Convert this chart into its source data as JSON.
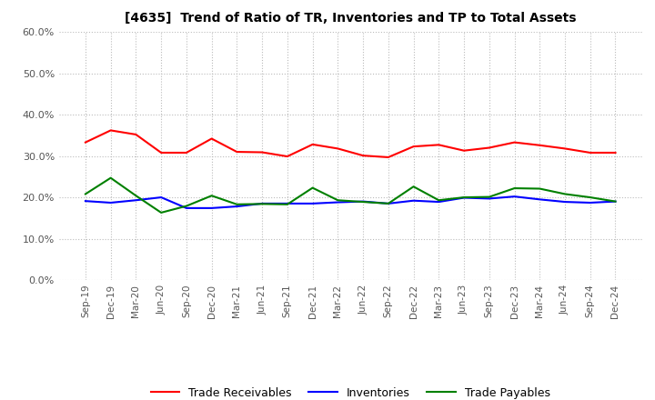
{
  "title": "[4635]  Trend of Ratio of TR, Inventories and TP to Total Assets",
  "x_labels": [
    "Sep-19",
    "Dec-19",
    "Mar-20",
    "Jun-20",
    "Sep-20",
    "Dec-20",
    "Mar-21",
    "Jun-21",
    "Sep-21",
    "Dec-21",
    "Mar-22",
    "Jun-22",
    "Sep-22",
    "Dec-22",
    "Mar-23",
    "Jun-23",
    "Sep-23",
    "Dec-23",
    "Mar-24",
    "Jun-24",
    "Sep-24",
    "Dec-24"
  ],
  "trade_receivables": [
    0.333,
    0.362,
    0.352,
    0.308,
    0.308,
    0.342,
    0.31,
    0.309,
    0.299,
    0.328,
    0.318,
    0.301,
    0.297,
    0.323,
    0.327,
    0.313,
    0.32,
    0.333,
    0.326,
    0.318,
    0.308,
    0.308
  ],
  "inventories": [
    0.191,
    0.187,
    0.193,
    0.2,
    0.174,
    0.174,
    0.178,
    0.185,
    0.185,
    0.185,
    0.188,
    0.19,
    0.185,
    0.192,
    0.189,
    0.199,
    0.197,
    0.202,
    0.195,
    0.189,
    0.187,
    0.19
  ],
  "trade_payables": [
    0.208,
    0.247,
    0.204,
    0.163,
    0.179,
    0.204,
    0.183,
    0.184,
    0.183,
    0.223,
    0.193,
    0.189,
    0.185,
    0.226,
    0.193,
    0.2,
    0.201,
    0.222,
    0.221,
    0.208,
    0.2,
    0.19
  ],
  "ylim": [
    0.0,
    0.6
  ],
  "yticks": [
    0.0,
    0.1,
    0.2,
    0.3,
    0.4,
    0.5,
    0.6
  ],
  "line_colors": {
    "trade_receivables": "#FF0000",
    "inventories": "#0000FF",
    "trade_payables": "#008000"
  },
  "legend_labels": [
    "Trade Receivables",
    "Inventories",
    "Trade Payables"
  ],
  "background_color": "#FFFFFF",
  "plot_bg_color": "#FFFFFF",
  "grid_color": "#BBBBBB",
  "title_color": "#000000",
  "tick_color": "#555555"
}
